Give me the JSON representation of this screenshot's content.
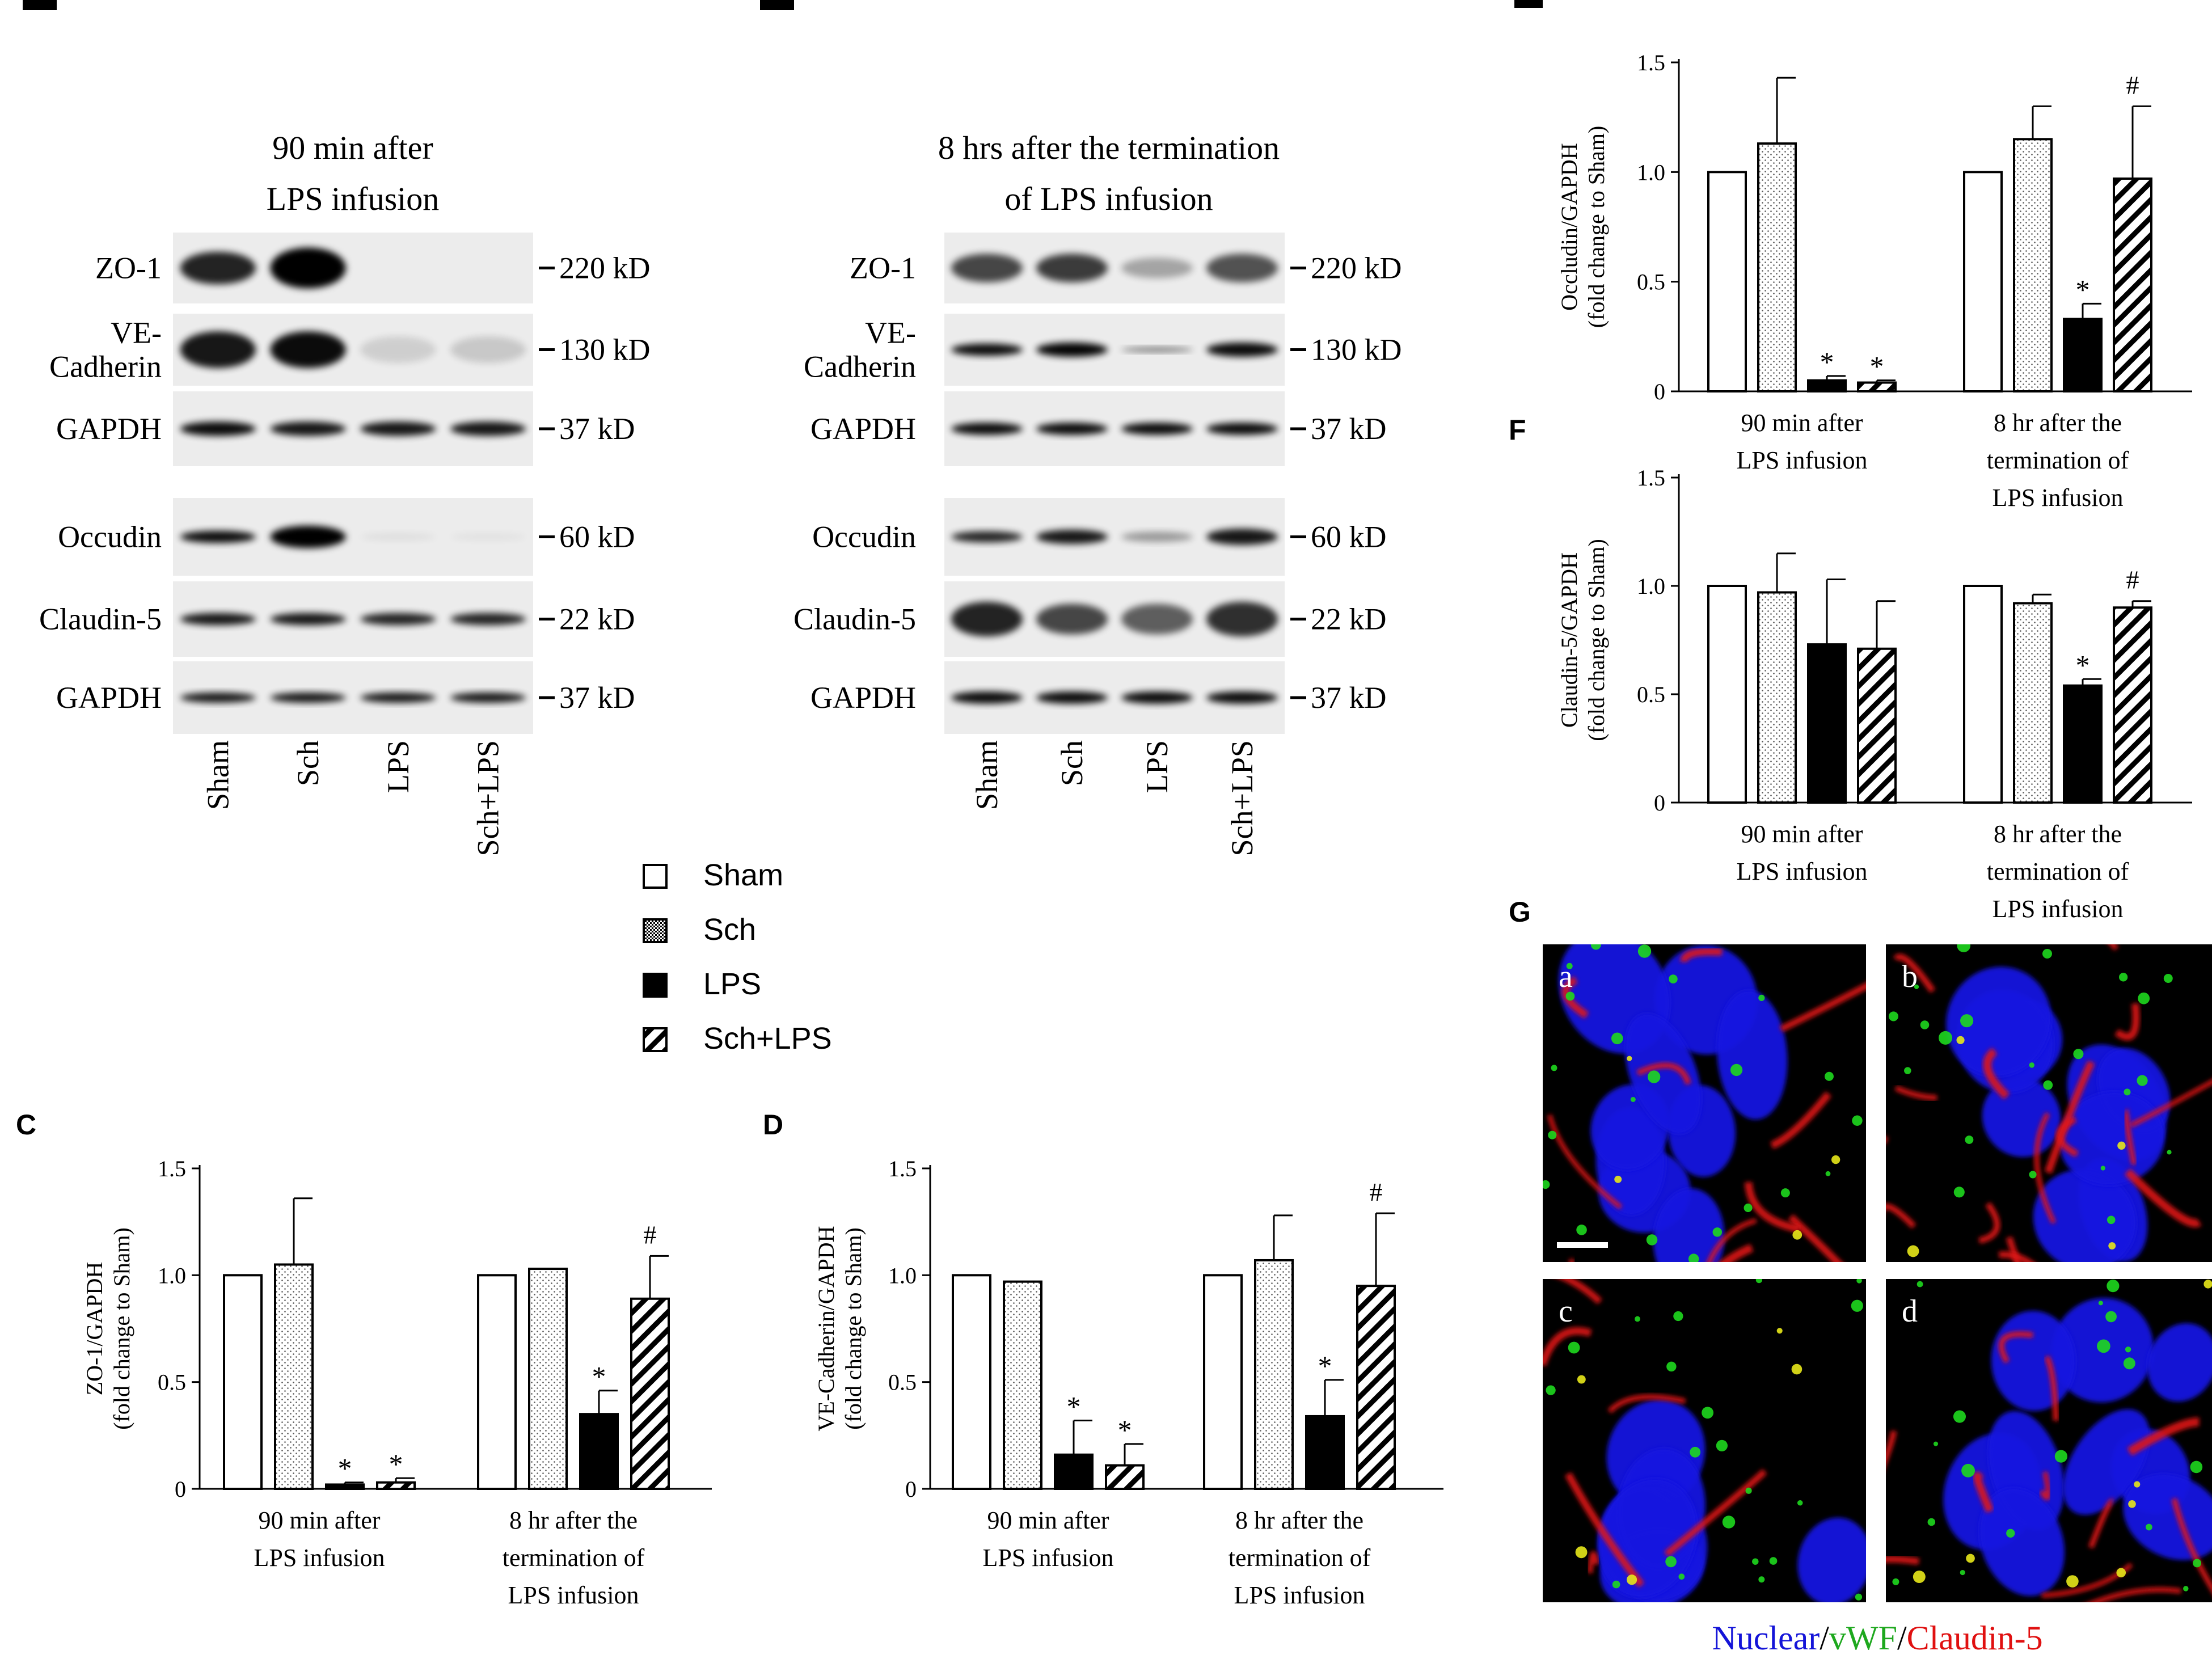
{
  "panel_letters": [
    "C",
    "D",
    "F",
    "G"
  ],
  "blots": [
    {
      "title_lines": [
        "90 min after",
        "LPS infusion"
      ],
      "proteins": [
        "ZO-1",
        "VE-Cadherin",
        "GAPDH",
        "Occudin",
        "Claudin-5",
        "GAPDH"
      ],
      "sizes": [
        "220 kD",
        "130 kD",
        "37 kD",
        "60 kD",
        "22 kD",
        "37 kD"
      ],
      "lanes": [
        "Sham",
        "Sch",
        "LPS",
        "Sch+LPS"
      ]
    },
    {
      "title_lines": [
        "8 hrs after the termination",
        "of LPS infusion"
      ],
      "proteins": [
        "ZO-1",
        "VE-Cadherin",
        "GAPDH",
        "Occudin",
        "Claudin-5",
        "GAPDH"
      ],
      "sizes": [
        "220 kD",
        "130 kD",
        "37 kD",
        "60 kD",
        "22 kD",
        "37 kD"
      ],
      "lanes": [
        "Sham",
        "Sch",
        "LPS",
        "Sch+LPS"
      ]
    }
  ],
  "legend": [
    "Sham",
    "Sch",
    "LPS",
    "Sch+LPS"
  ],
  "group_labels": [
    [
      "90 min after",
      "LPS infusion"
    ],
    [
      "8 hr after the",
      "termination of",
      "LPS infusion"
    ]
  ],
  "chart_data": [
    {
      "id": "C",
      "type": "bar",
      "ylabel": "ZO-1/GAPDH (fold change to Sham)",
      "ylim": [
        0,
        1.5
      ],
      "yticks": [
        "0",
        "0.5",
        "1.0",
        "1.5"
      ],
      "groups": [
        "90 min after LPS infusion",
        "8 hr after the termination of LPS infusion"
      ],
      "series": [
        {
          "name": "Sham",
          "values": [
            1.0,
            1.0
          ],
          "errors": [
            0,
            0
          ],
          "marks": [
            "",
            ""
          ]
        },
        {
          "name": "Sch",
          "values": [
            1.05,
            1.03
          ],
          "errors": [
            0.31,
            0
          ],
          "marks": [
            "",
            ""
          ]
        },
        {
          "name": "LPS",
          "values": [
            0.02,
            0.35
          ],
          "errors": [
            0.01,
            0.11
          ],
          "marks": [
            "*",
            "*"
          ]
        },
        {
          "name": "Sch+LPS",
          "values": [
            0.03,
            0.89
          ],
          "errors": [
            0.02,
            0.2
          ],
          "marks": [
            "*",
            "#"
          ]
        }
      ]
    },
    {
      "id": "D",
      "type": "bar",
      "ylabel": "VE-Cadherin/GAPDH (fold change to Sham)",
      "ylim": [
        0,
        1.5
      ],
      "yticks": [
        "0",
        "0.5",
        "1.0",
        "1.5"
      ],
      "groups": [
        "90 min after LPS infusion",
        "8 hr after the termination of LPS infusion"
      ],
      "series": [
        {
          "name": "Sham",
          "values": [
            1.0,
            1.0
          ],
          "errors": [
            0,
            0
          ],
          "marks": [
            "",
            ""
          ]
        },
        {
          "name": "Sch",
          "values": [
            0.97,
            1.07
          ],
          "errors": [
            0,
            0.21
          ],
          "marks": [
            "",
            ""
          ]
        },
        {
          "name": "LPS",
          "values": [
            0.16,
            0.34
          ],
          "errors": [
            0.16,
            0.17
          ],
          "marks": [
            "*",
            "*"
          ]
        },
        {
          "name": "Sch+LPS",
          "values": [
            0.11,
            0.95
          ],
          "errors": [
            0.1,
            0.34
          ],
          "marks": [
            "*",
            "#"
          ]
        }
      ]
    },
    {
      "id": "E",
      "type": "bar",
      "ylabel": "Occludin/GAPDH (fold change to Sham)",
      "ylim": [
        0,
        1.5
      ],
      "yticks": [
        "0",
        "0.5",
        "1.0",
        "1.5"
      ],
      "groups": [
        "90 min after LPS infusion",
        "8 hr after the termination of LPS infusion"
      ],
      "series": [
        {
          "name": "Sham",
          "values": [
            1.0,
            1.0
          ],
          "errors": [
            0,
            0
          ],
          "marks": [
            "",
            ""
          ]
        },
        {
          "name": "Sch",
          "values": [
            1.13,
            1.15
          ],
          "errors": [
            0.3,
            0.15
          ],
          "marks": [
            "",
            ""
          ]
        },
        {
          "name": "LPS",
          "values": [
            0.05,
            0.33
          ],
          "errors": [
            0.02,
            0.07
          ],
          "marks": [
            "*",
            "*"
          ]
        },
        {
          "name": "Sch+LPS",
          "values": [
            0.04,
            0.97
          ],
          "errors": [
            0.01,
            0.33
          ],
          "marks": [
            "*",
            "#"
          ]
        }
      ]
    },
    {
      "id": "F",
      "type": "bar",
      "ylabel": "Claudin-5/GAPDH (fold change to Sham)",
      "ylim": [
        0,
        1.5
      ],
      "yticks": [
        "0",
        "0.5",
        "1.0",
        "1.5"
      ],
      "groups": [
        "90 min after LPS infusion",
        "8 hr after the termination of LPS infusion"
      ],
      "series": [
        {
          "name": "Sham",
          "values": [
            1.0,
            1.0
          ],
          "errors": [
            0,
            0
          ],
          "marks": [
            "",
            ""
          ]
        },
        {
          "name": "Sch",
          "values": [
            0.97,
            0.92
          ],
          "errors": [
            0.18,
            0.04
          ],
          "marks": [
            "",
            ""
          ]
        },
        {
          "name": "LPS",
          "values": [
            0.73,
            0.54
          ],
          "errors": [
            0.3,
            0.03
          ],
          "marks": [
            "",
            "*"
          ]
        },
        {
          "name": "Sch+LPS",
          "values": [
            0.71,
            0.9
          ],
          "errors": [
            0.22,
            0.03
          ],
          "marks": [
            "",
            "#"
          ]
        }
      ]
    }
  ],
  "micrographs": {
    "panels": [
      "a",
      "b",
      "c",
      "d"
    ],
    "caption": {
      "nuclear": "Nuclear",
      "vwf": "vWF",
      "claudin": "Claudin-5",
      "sep": "/"
    },
    "caption_colors": {
      "nuclear": "#1414d8",
      "vwf": "#1ea81e",
      "claudin": "#e01010"
    }
  }
}
